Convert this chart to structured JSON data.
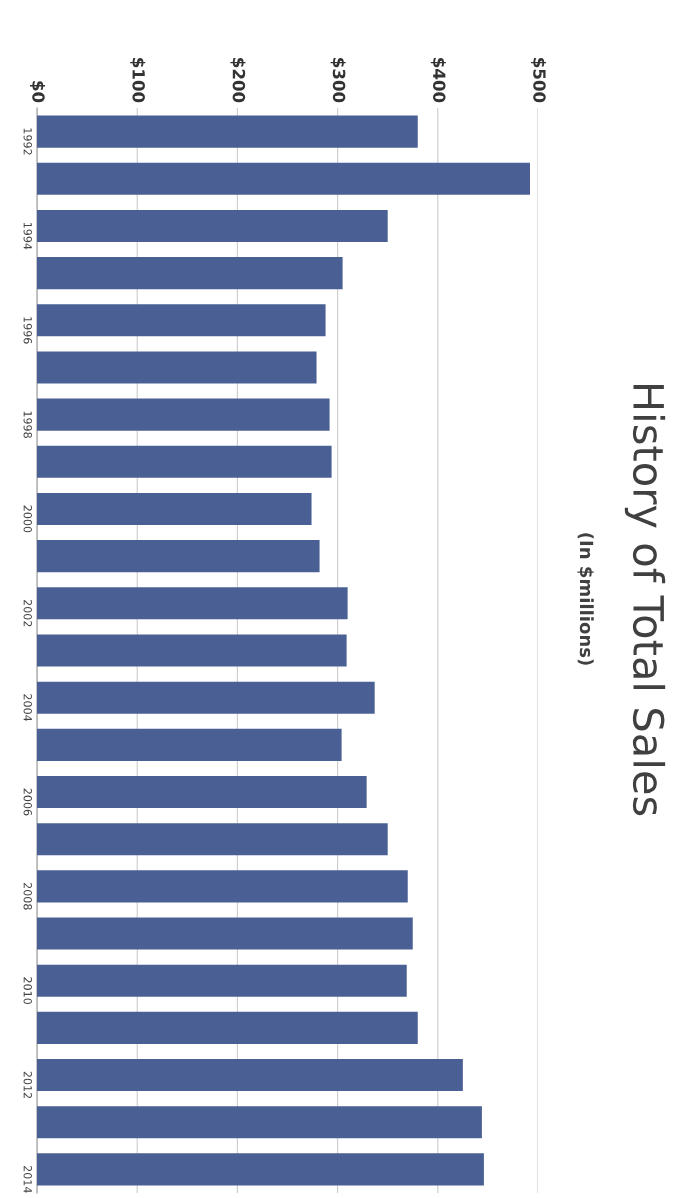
{
  "chart_data": {
    "type": "bar",
    "orientation": "horizontal",
    "title": "History of Total Sales",
    "subtitle": "(In $millions)",
    "categories": [
      "1992",
      null,
      "1994",
      null,
      "1996",
      null,
      "1998",
      null,
      "2000",
      null,
      "2002",
      null,
      "2004",
      null,
      "2006",
      null,
      "2008",
      null,
      "2010",
      null,
      "2012",
      null,
      "2014"
    ],
    "values": [
      380,
      492,
      350,
      305,
      288,
      279,
      292,
      294,
      274,
      282,
      310,
      309,
      337,
      304,
      329,
      350,
      370,
      375,
      369,
      380,
      425,
      444,
      446
    ],
    "color": "#4a6094",
    "xlim": [
      0,
      500
    ],
    "xticks": [
      {
        "value": 0,
        "label": "$0"
      },
      {
        "value": 100,
        "label": "$100"
      },
      {
        "value": 200,
        "label": "$200"
      },
      {
        "value": 300,
        "label": "$300"
      },
      {
        "value": 400,
        "label": "$400"
      },
      {
        "value": 500,
        "label": "$500"
      }
    ],
    "grid": "x"
  }
}
